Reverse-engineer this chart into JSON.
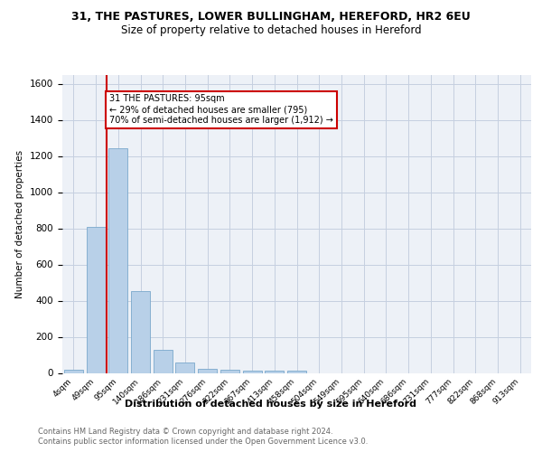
{
  "title1": "31, THE PASTURES, LOWER BULLINGHAM, HEREFORD, HR2 6EU",
  "title2": "Size of property relative to detached houses in Hereford",
  "xlabel": "Distribution of detached houses by size in Hereford",
  "ylabel": "Number of detached properties",
  "footnote1": "Contains HM Land Registry data © Crown copyright and database right 2024.",
  "footnote2": "Contains public sector information licensed under the Open Government Licence v3.0.",
  "annotation_line1": "31 THE PASTURES: 95sqm",
  "annotation_line2": "← 29% of detached houses are smaller (795)",
  "annotation_line3": "70% of semi-detached houses are larger (1,912) →",
  "bar_labels": [
    "4sqm",
    "49sqm",
    "95sqm",
    "140sqm",
    "186sqm",
    "231sqm",
    "276sqm",
    "322sqm",
    "367sqm",
    "413sqm",
    "458sqm",
    "504sqm",
    "549sqm",
    "595sqm",
    "640sqm",
    "686sqm",
    "731sqm",
    "777sqm",
    "822sqm",
    "868sqm",
    "913sqm"
  ],
  "bar_values": [
    20,
    810,
    1245,
    455,
    130,
    60,
    25,
    20,
    15,
    15,
    15,
    0,
    0,
    0,
    0,
    0,
    0,
    0,
    0,
    0,
    0
  ],
  "bar_color": "#b8d0e8",
  "bar_edge_color": "#7aa8cc",
  "vline_color": "#cc0000",
  "ylim": [
    0,
    1650
  ],
  "yticks": [
    0,
    200,
    400,
    600,
    800,
    1000,
    1200,
    1400,
    1600
  ],
  "annotation_box_color": "#cc0000",
  "bg_color": "#edf1f7",
  "grid_color": "#c5cfe0",
  "title1_fontsize": 9,
  "title2_fontsize": 8.5
}
